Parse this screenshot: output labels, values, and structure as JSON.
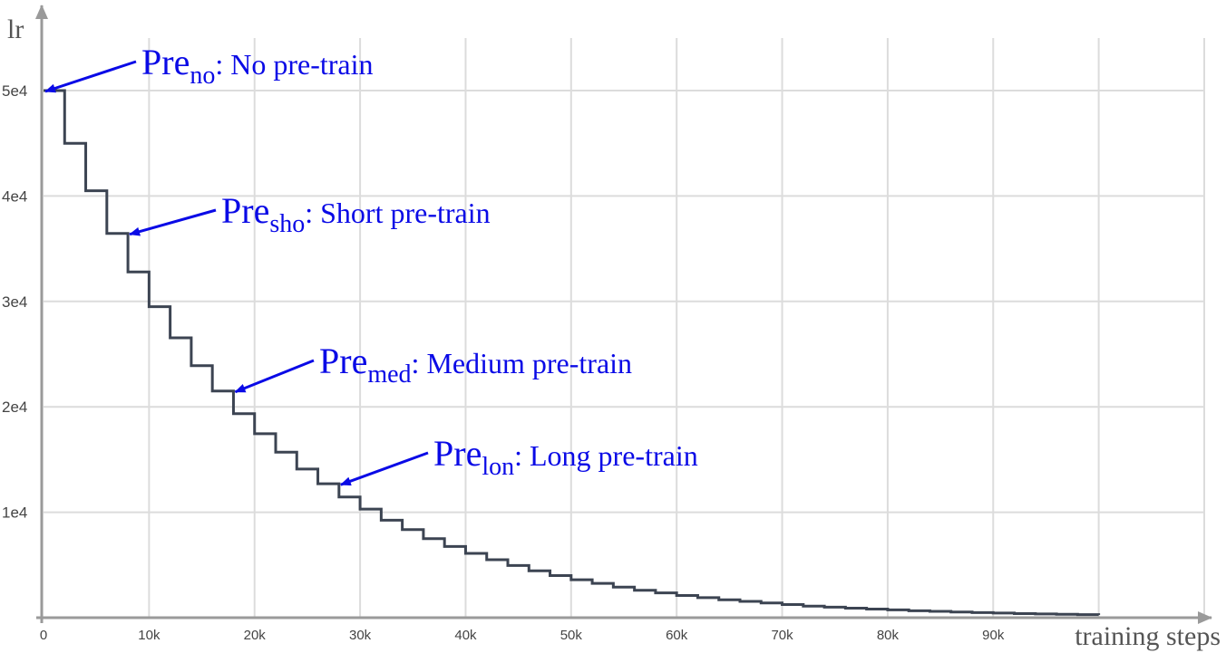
{
  "chart_data": {
    "type": "line",
    "title": "",
    "xlabel": "training steps",
    "ylabel": "lr",
    "xlim": [
      0,
      110000
    ],
    "ylim": [
      0,
      50000
    ],
    "x_ticks": [
      0,
      10000,
      20000,
      30000,
      40000,
      50000,
      60000,
      70000,
      80000,
      90000
    ],
    "x_tick_labels": [
      "0",
      "10k",
      "20k",
      "30k",
      "40k",
      "50k",
      "60k",
      "70k",
      "80k",
      "90k"
    ],
    "y_ticks": [
      10000,
      20000,
      30000,
      40000,
      50000
    ],
    "y_tick_labels": [
      "1e4",
      "2e4",
      "3e4",
      "4e4",
      "5e4"
    ],
    "grid": true,
    "series": [
      {
        "style": "step",
        "color": "#3c4452",
        "x": [
          0,
          2000,
          4000,
          6000,
          8000,
          10000,
          12000,
          14000,
          16000,
          18000,
          20000,
          22000,
          24000,
          26000,
          28000,
          30000,
          32000,
          34000,
          36000,
          38000,
          40000,
          42000,
          44000,
          46000,
          48000,
          50000,
          52000,
          54000,
          56000,
          58000,
          60000,
          62000,
          64000,
          66000,
          68000,
          70000,
          72000,
          74000,
          76000,
          78000,
          80000,
          82000,
          84000,
          86000,
          88000,
          90000,
          92000,
          94000,
          96000,
          98000,
          100000
        ],
        "y": [
          50000,
          45000,
          40500,
          36450,
          32800,
          29500,
          26550,
          23900,
          21500,
          19350,
          17450,
          15700,
          14100,
          12700,
          11450,
          10300,
          9250,
          8350,
          7500,
          6750,
          6100,
          5500,
          4950,
          4450,
          4000,
          3600,
          3250,
          2900,
          2600,
          2350,
          2100,
          1900,
          1700,
          1550,
          1400,
          1250,
          1100,
          1000,
          900,
          820,
          740,
          660,
          600,
          540,
          480,
          440,
          390,
          350,
          320,
          290,
          260
        ]
      }
    ],
    "annotations": [
      {
        "main": "Pre",
        "sub": "no",
        "text": ": No pre-train",
        "x": 0,
        "y": 50000
      },
      {
        "main": "Pre",
        "sub": "sho",
        "text": ": Short pre-train",
        "x": 8000,
        "y": 36450
      },
      {
        "main": "Pre",
        "sub": "med",
        "text": ": Medium pre-train",
        "x": 18000,
        "y": 21500
      },
      {
        "main": "Pre",
        "sub": "lon",
        "text": ": Long pre-train",
        "x": 28000,
        "y": 12700
      }
    ],
    "annotation_color": "#0a0ae6"
  }
}
